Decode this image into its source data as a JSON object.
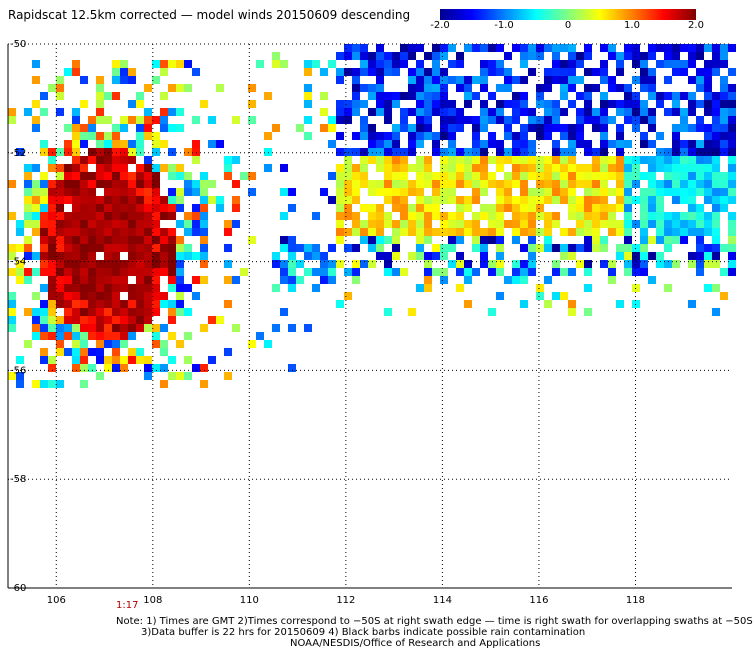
{
  "title": "Rapidscat 12.5km corrected — model winds 20150609 descending",
  "colorbar": {
    "labels": [
      "-2.0",
      "-1.0",
      "0",
      "1.0",
      "2.0"
    ],
    "values": [
      -2.0,
      -1.0,
      0,
      1.0,
      2.0
    ],
    "range": [
      -2.0,
      2.0
    ]
  },
  "map": {
    "lon_range": [
      105,
      120
    ],
    "lat_range": [
      -60,
      -50
    ],
    "y_ticks": [
      -50,
      -52,
      -54,
      -56,
      -58,
      -60
    ],
    "y_labels": [
      "-50",
      "-52",
      "-54",
      "-56",
      "-58",
      "-60"
    ],
    "x_ticks": [
      106,
      108,
      110,
      112,
      114,
      116,
      118
    ],
    "x_labels": [
      "106",
      "108",
      "110",
      "112",
      "114",
      "116",
      "118"
    ],
    "grid": "dotted"
  },
  "timestamp": "1:17",
  "notes": {
    "line1": "Note: 1) Times are GMT 2)Times correspond to −50S at right swath edge — time is right swath for overlapping swaths at −50S",
    "line2": "3)Data buffer is 22 hrs for 20150609 4) Black barbs indicate possible rain contamination",
    "line3": "NOAA/NESDIS/Office of Research and Applications"
  }
}
